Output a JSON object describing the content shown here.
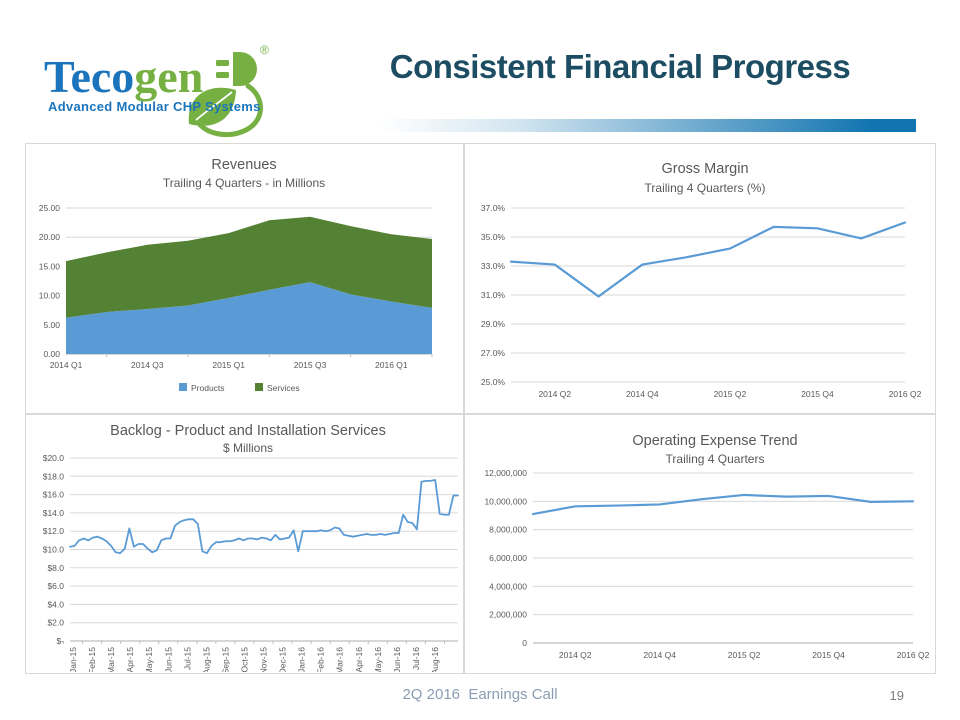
{
  "slide": {
    "title": "Consistent Financial Progress",
    "footer": "2Q 2016  Earnings Call",
    "page_number": "19",
    "logo": {
      "brand_prefix": "Teco",
      "brand_suffix": "gen",
      "registered": "®",
      "tagline": "Advanced Modular CHP Systems"
    }
  },
  "colors": {
    "accent_blue": "#5B9BD5",
    "accent_green": "#548235",
    "gridline": "#d9d9d9",
    "axis_line": "#bfbfbf",
    "chart_text": "#595959",
    "title_text": "#1d4d62",
    "logo_blue": "#1c75bc",
    "logo_green": "#76b043",
    "footer_text": "#8b9cb3"
  },
  "chart_data": [
    {
      "id": "revenues",
      "type": "area",
      "stacked": true,
      "title": "Revenues",
      "subtitle": "Trailing 4 Quarters - in Millions",
      "categories": [
        "2014 Q1",
        "2014 Q2",
        "2014 Q3",
        "2014 Q4",
        "2015 Q1",
        "2015 Q2",
        "2015 Q3",
        "2015 Q4",
        "2016 Q1",
        "2016 Q2"
      ],
      "x_tick_labels": [
        "2014 Q1",
        "2014 Q3",
        "2015 Q1",
        "2015 Q3",
        "2016 Q1"
      ],
      "x_tick_indices": [
        0,
        2,
        4,
        6,
        8
      ],
      "series": [
        {
          "name": "Products",
          "color": "#5B9BD5",
          "values": [
            6.2,
            7.2,
            7.7,
            8.3,
            9.6,
            11.0,
            12.3,
            10.2,
            9.0,
            7.9
          ]
        },
        {
          "name": "Services",
          "color": "#548235",
          "values": [
            9.7,
            10.2,
            11.0,
            11.1,
            11.1,
            11.9,
            11.2,
            11.7,
            11.5,
            11.8
          ]
        }
      ],
      "ylim": [
        0,
        25
      ],
      "ytick_step": 5,
      "ytick_labels": [
        "0.00",
        "5.00",
        "10.00",
        "15.00",
        "20.00",
        "25.00"
      ],
      "legend": true,
      "grid": true,
      "legend_position": "bottom"
    },
    {
      "id": "gross-margin",
      "type": "line",
      "title": "Gross Margin",
      "subtitle": "Trailing 4 Quarters (%)",
      "categories": [
        "2014 Q1",
        "2014 Q2",
        "2014 Q3",
        "2014 Q4",
        "2015 Q1",
        "2015 Q2",
        "2015 Q3",
        "2015 Q4",
        "2016 Q1",
        "2016 Q2"
      ],
      "x_tick_labels": [
        "2014 Q2",
        "2014 Q4",
        "2015 Q2",
        "2015 Q4",
        "2016 Q2"
      ],
      "x_tick_indices": [
        1,
        3,
        5,
        7,
        9
      ],
      "series": [
        {
          "name": "Gross Margin %",
          "color": "#5B9BD5",
          "values": [
            33.3,
            33.1,
            30.9,
            33.1,
            33.6,
            34.2,
            35.7,
            35.6,
            34.9,
            36.0
          ]
        }
      ],
      "ylim": [
        25,
        37
      ],
      "ytick_step": 2,
      "ytick_labels": [
        "25.0%",
        "27.0%",
        "29.0%",
        "31.0%",
        "33.0%",
        "35.0%",
        "37.0%"
      ],
      "legend": false,
      "grid": true
    },
    {
      "id": "backlog",
      "type": "line",
      "title": "Backlog - Product and Installation Services",
      "subtitle": "$ Millions",
      "x_tick_labels": [
        "Jan-15",
        "Feb-15",
        "Mar-15",
        "Apr-15",
        "May-15",
        "Jun-15",
        "Jul-15",
        "Aug-15",
        "Sep-15",
        "Oct-15",
        "Nov-15",
        "Dec-15",
        "Jan-16",
        "Feb-16",
        "Mar-16",
        "Apr-16",
        "May-16",
        "Jun-16",
        "Jul-16",
        "Aug-16"
      ],
      "x_frequency": "weekly",
      "series": [
        {
          "name": "Backlog",
          "color": "#5B9BD5",
          "values": [
            10.3,
            10.4,
            11.0,
            11.2,
            11.0,
            11.3,
            11.4,
            11.2,
            10.9,
            10.4,
            9.7,
            9.6,
            10.1,
            12.3,
            10.3,
            10.6,
            10.6,
            10.1,
            9.7,
            9.9,
            11.0,
            11.2,
            11.2,
            12.6,
            13.0,
            13.2,
            13.3,
            13.3,
            12.8,
            9.8,
            9.6,
            10.4,
            10.8,
            10.8,
            10.9,
            10.9,
            11.0,
            11.2,
            11.0,
            11.2,
            11.2,
            11.1,
            11.3,
            11.2,
            11.0,
            11.6,
            11.1,
            11.2,
            11.3,
            12.1,
            9.8,
            12.0,
            12.0,
            12.0,
            12.0,
            12.1,
            12.0,
            12.1,
            12.4,
            12.3,
            11.6,
            11.5,
            11.4,
            11.5,
            11.6,
            11.7,
            11.6,
            11.6,
            11.7,
            11.6,
            11.7,
            11.8,
            11.8,
            13.8,
            13.0,
            12.9,
            12.2,
            17.4,
            17.5,
            17.5,
            17.6,
            13.9,
            13.8,
            13.8,
            15.9,
            15.9
          ]
        }
      ],
      "ylim": [
        0,
        20
      ],
      "ytick_step": 2,
      "ytick_labels": [
        "$-",
        "$2.0",
        "$4.0",
        "$6.0",
        "$8.0",
        "$10.0",
        "$12.0",
        "$14.0",
        "$16.0",
        "$18.0",
        "$20.0"
      ],
      "legend": false,
      "grid": true,
      "x_labels_rotated": true
    },
    {
      "id": "operating-expense",
      "type": "line",
      "title": "Operating Expense Trend",
      "subtitle": "Trailing 4 Quarters",
      "categories": [
        "2014 Q1",
        "2014 Q2",
        "2014 Q3",
        "2014 Q4",
        "2015 Q1",
        "2015 Q2",
        "2015 Q3",
        "2015 Q4",
        "2016 Q1",
        "2016 Q2"
      ],
      "x_tick_labels": [
        "2014 Q2",
        "2014 Q4",
        "2015 Q2",
        "2015 Q4",
        "2016 Q2"
      ],
      "x_tick_indices": [
        1,
        3,
        5,
        7,
        9
      ],
      "series": [
        {
          "name": "Operating Expense",
          "color": "#5B9BD5",
          "values": [
            9100000,
            9650000,
            9700000,
            9780000,
            10150000,
            10450000,
            10330000,
            10380000,
            9960000,
            10000000
          ]
        }
      ],
      "ylim": [
        0,
        12000000
      ],
      "ytick_step": 2000000,
      "ytick_labels": [
        "0",
        "2,000,000",
        "4,000,000",
        "6,000,000",
        "8,000,000",
        "10,000,000",
        "12,000,000"
      ],
      "legend": false,
      "grid": true
    }
  ]
}
